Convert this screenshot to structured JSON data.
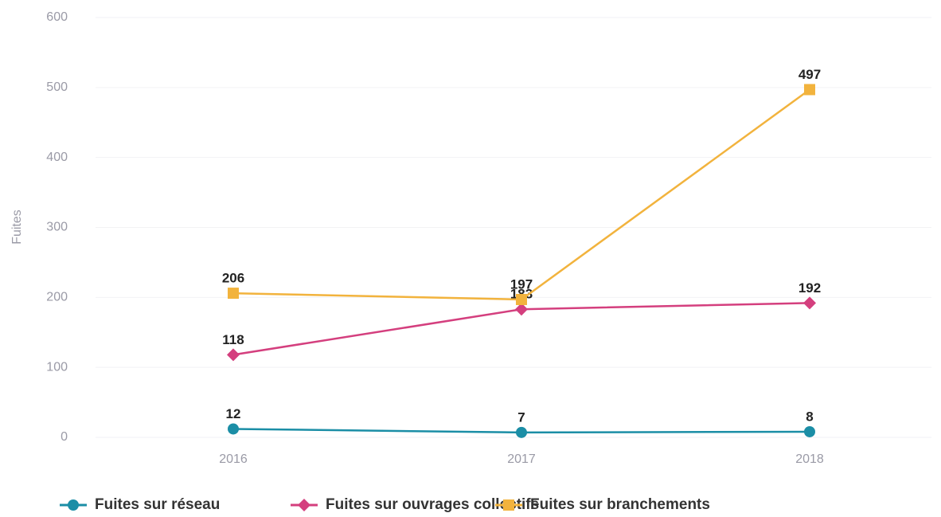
{
  "chart_data": {
    "type": "line",
    "y_label": "Fuites",
    "categories": [
      "2016",
      "2017",
      "2018"
    ],
    "series": [
      {
        "name": "Fuites sur réseau",
        "color": "#1b8ea6",
        "marker": "circle",
        "values": [
          12,
          7,
          8
        ]
      },
      {
        "name": "Fuites sur ouvrages collectifs",
        "color": "#d43f7e",
        "marker": "diamond",
        "values": [
          118,
          183,
          192
        ]
      },
      {
        "name": "Fuites sur branchements",
        "color": "#f2b33d",
        "marker": "square",
        "values": [
          206,
          197,
          497
        ]
      }
    ],
    "ylim": [
      0,
      600
    ],
    "yticks": [
      0,
      100,
      200,
      300,
      400,
      500,
      600
    ],
    "grid": true,
    "legend": "bottom"
  }
}
